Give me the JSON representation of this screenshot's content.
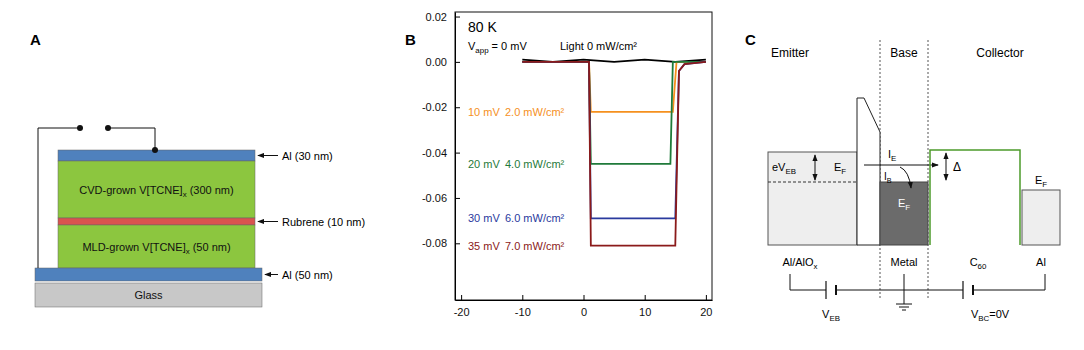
{
  "panel_a": {
    "label": "A",
    "layers": [
      {
        "side_label": "Al (30 nm)",
        "color": "#4f81bd"
      },
      {
        "inner_label": [
          {
            "text": "CVD-grown V[TCNE]",
            "sub": "x"
          },
          {
            "text": " (300 nm)"
          }
        ],
        "color": "#8cc63f"
      },
      {
        "side_label": "Rubrene (10 nm)",
        "color": "#d9534f"
      },
      {
        "inner_label": [
          {
            "text": "MLD-grown V[TCNE]",
            "sub": "x"
          },
          {
            "text": " (50 nm)"
          }
        ],
        "color": "#8cc63f"
      },
      {
        "side_label": "Al (50 nm)",
        "color": "#4f81bd"
      },
      {
        "inner_label": [
          {
            "text": "Glass"
          }
        ],
        "color": "#c8c8c8"
      }
    ]
  },
  "chart_data": {
    "panel_label": "B",
    "type": "line",
    "annotation": "80 K",
    "xlim": [
      -21,
      21
    ],
    "xticks": [
      -20,
      -10,
      0,
      10,
      20
    ],
    "ylim": [
      -0.105,
      0.022
    ],
    "yticks": [
      0.02,
      {
        "value": 0,
        "label": "0.00"
      },
      -0.02,
      -0.04,
      -0.06,
      -0.08
    ],
    "series": [
      {
        "name": "Light 0 mW/cm²",
        "voltage": [
          {
            "text": "V",
            "sub": "app"
          },
          {
            "text": " = 0 mV"
          }
        ],
        "color": "#000000",
        "x": [
          -10,
          -5,
          0,
          5,
          10,
          15,
          20
        ],
        "values": [
          0.001,
          0.0,
          0.001,
          0.0,
          0.001,
          0.0,
          0.001
        ]
      },
      {
        "name": "2.0 mW/cm²",
        "voltage": [
          {
            "text": "10 mV"
          }
        ],
        "color": "#f5901e",
        "x": [
          -10,
          0.9,
          1.2,
          14.6,
          15.2,
          20
        ],
        "values": [
          0,
          0,
          -0.022,
          -0.022,
          0,
          0
        ]
      },
      {
        "name": "4.0 mW/cm²",
        "voltage": [
          {
            "text": "20 mV"
          }
        ],
        "color": "#1f7a3a",
        "x": [
          -10,
          0.9,
          1.2,
          14.2,
          14.6,
          20
        ],
        "values": [
          0,
          0,
          -0.045,
          -0.045,
          0,
          0
        ]
      },
      {
        "name": "6.0 mW/cm²",
        "voltage": [
          {
            "text": "30 mV"
          }
        ],
        "color": "#2a3a9e",
        "x": [
          -10,
          0.9,
          1.2,
          15.0,
          15.6,
          16.5,
          20
        ],
        "values": [
          0,
          0,
          -0.069,
          -0.069,
          -0.004,
          -0.001,
          0
        ]
      },
      {
        "name": "7.0 mW/cm²",
        "voltage": [
          {
            "text": "35 mV"
          }
        ],
        "color": "#8b1a1a",
        "x": [
          -10,
          0.9,
          1.2,
          15.0,
          15.6,
          16.5,
          20
        ],
        "values": [
          0,
          0,
          -0.081,
          -0.081,
          -0.004,
          -0.001,
          0
        ]
      }
    ]
  },
  "panel_c": {
    "label": "C",
    "regions": [
      "Emitter",
      "Base",
      "Collector"
    ],
    "materials": [
      [
        {
          "text": "Al/AlO",
          "sub": "x"
        }
      ],
      [
        {
          "text": "Metal"
        }
      ],
      [
        {
          "text": "C",
          "sub": "60"
        }
      ],
      [
        {
          "text": "Al"
        }
      ]
    ],
    "fermi_levels": [
      [
        {
          "text": "E",
          "sub": "F"
        }
      ],
      [
        {
          "text": "E",
          "sub": "F"
        }
      ],
      [
        {
          "text": "E",
          "sub": "F"
        }
      ]
    ],
    "bias_energy": [
      {
        "text": "eV",
        "sub": "EB"
      }
    ],
    "emitter_current": [
      {
        "text": "I",
        "sub": "E"
      }
    ],
    "base_current": [
      {
        "text": "I",
        "sub": "B"
      }
    ],
    "barrier_height": "Δ",
    "voltages": [
      [
        {
          "text": "V",
          "sub": "EB"
        }
      ],
      [
        {
          "text": "V",
          "sub": "BC"
        },
        {
          "text": "=0V"
        }
      ]
    ]
  }
}
